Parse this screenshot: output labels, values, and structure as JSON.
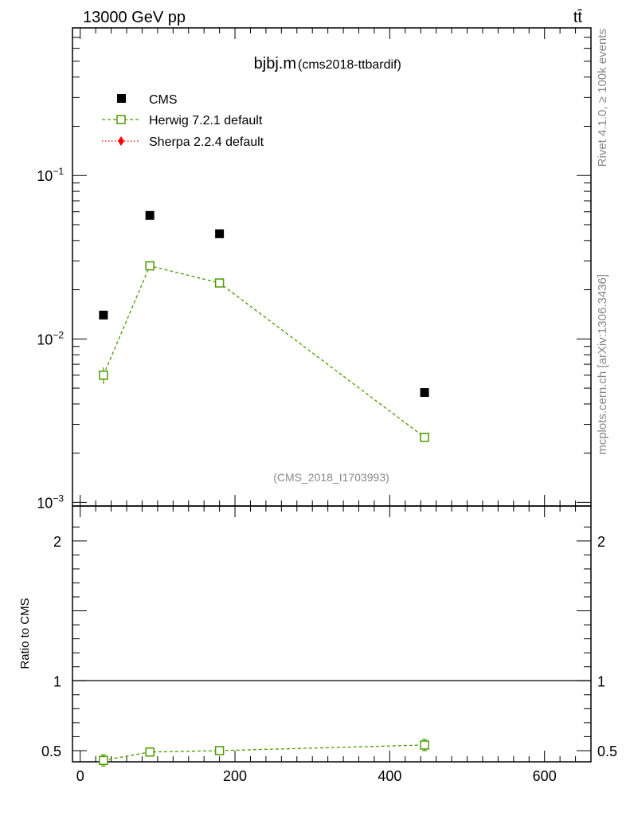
{
  "header": {
    "energy_label": "13000 GeV pp",
    "process_label": "tt̄"
  },
  "side_labels": {
    "rivet": "Rivet 4.1.0, ≥ 100k events",
    "mcplots": "mcplots.cern.ch [arXiv:1306.3436]"
  },
  "chart_data": [
    {
      "type": "scatter",
      "title": "bjbj.m",
      "subtitle": "(cms2018-ttbardif)",
      "watermark": "(CMS_2018_I1703993)",
      "y_scale": "log",
      "ylim": [
        0.00095,
        0.8
      ],
      "xlim": [
        -10,
        660
      ],
      "y_ticks": [
        {
          "value": 0.1,
          "label": "10",
          "exp": "−1"
        },
        {
          "value": 0.01,
          "label": "10",
          "exp": "−2"
        },
        {
          "value": 0.001,
          "label": "10",
          "exp": "−3"
        }
      ],
      "legend_position": "top-left",
      "series": [
        {
          "name": "CMS",
          "color": "#000000",
          "marker": "filled-square",
          "x": [
            30,
            90,
            180,
            445
          ],
          "y": [
            0.014,
            0.057,
            0.044,
            0.0047
          ]
        },
        {
          "name": "Herwig 7.2.1 default",
          "color": "#4c9a00",
          "marker": "open-square",
          "line": "dashed",
          "x": [
            30,
            90,
            180,
            445
          ],
          "y": [
            0.006,
            0.028,
            0.022,
            0.0025
          ],
          "err_low": [
            0.0007,
            0.001,
            0.0008,
            0.0001
          ],
          "err_high": [
            0.0007,
            0.001,
            0.0008,
            0.0001
          ]
        },
        {
          "name": "Sherpa 2.2.4 default",
          "color": "#ff0000",
          "marker": "diamond",
          "line": "dotted",
          "x": [],
          "y": []
        }
      ]
    },
    {
      "type": "scatter",
      "ylabel": "Ratio to CMS",
      "ylim": [
        0.42,
        2.25
      ],
      "xlim": [
        -10,
        660
      ],
      "x_ticks": [
        0,
        200,
        400,
        600
      ],
      "y_ticks": [
        0.5,
        1,
        2
      ],
      "reference_line": 1,
      "series": [
        {
          "name": "Herwig 7.2.1 default",
          "color": "#4c9a00",
          "marker": "open-square",
          "line": "dashed",
          "x": [
            30,
            90,
            180,
            445
          ],
          "y": [
            0.43,
            0.49,
            0.5,
            0.54
          ],
          "err_low": [
            0.04,
            0.025,
            0.02,
            0.04
          ],
          "err_high": [
            0.04,
            0.025,
            0.02,
            0.04
          ]
        }
      ]
    }
  ]
}
